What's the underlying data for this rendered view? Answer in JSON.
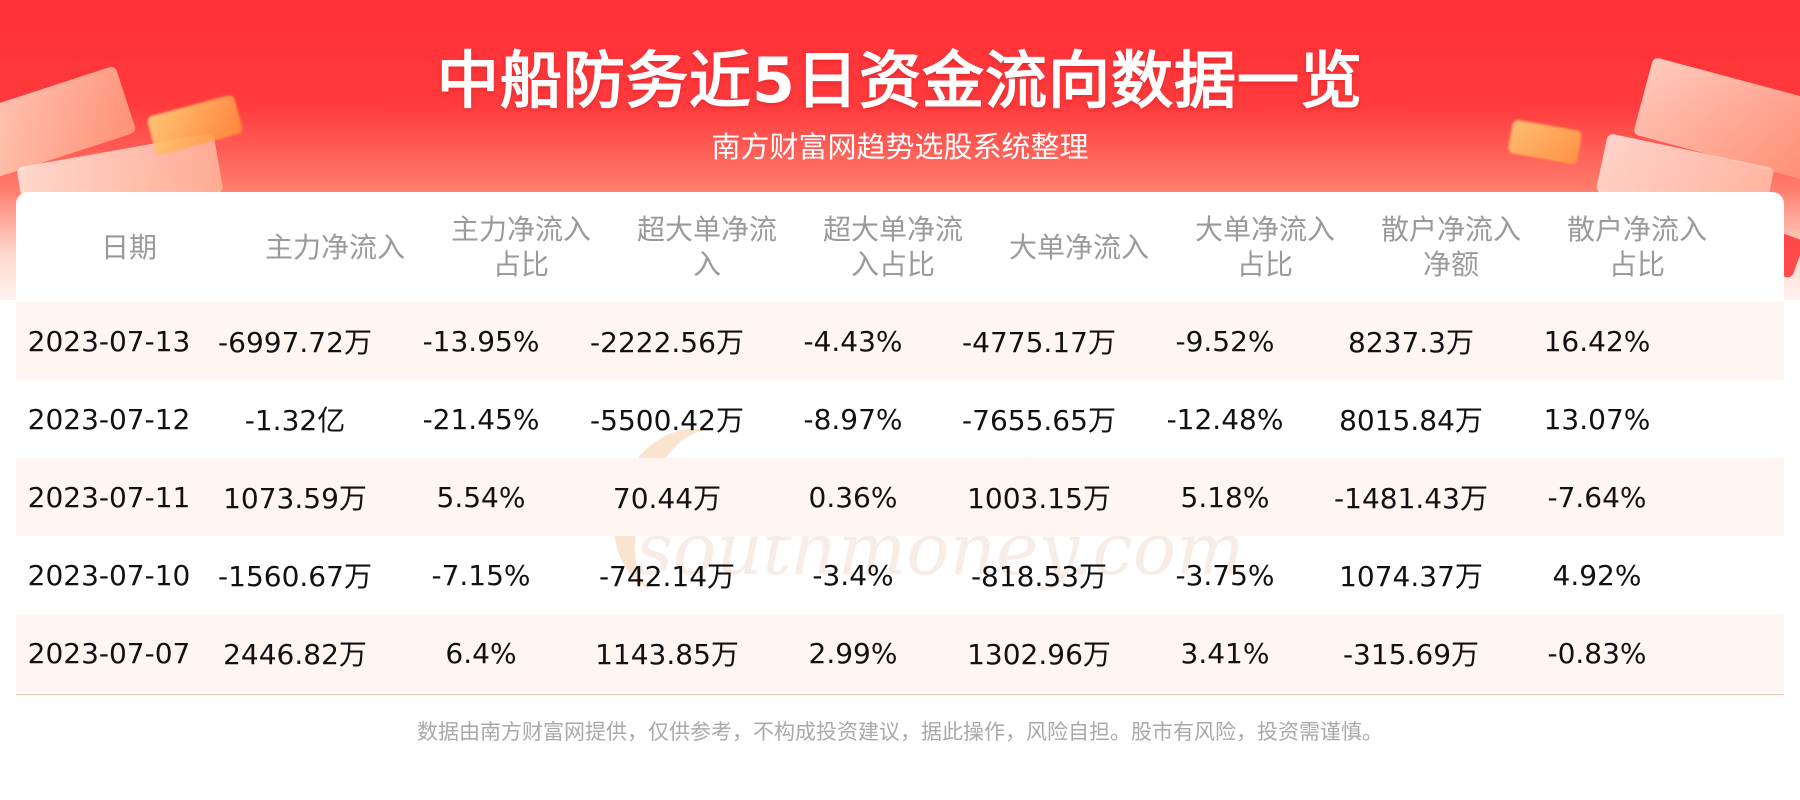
{
  "title": "中船防务近5日资金流向数据一览",
  "subtitle": "南方财富网趋势选股系统整理",
  "watermark": {
    "cn": "南方财富网",
    "en": "southmoney.com"
  },
  "table": {
    "headers": [
      [
        "日期"
      ],
      [
        "主力净流入"
      ],
      [
        "主力净流入",
        "占比"
      ],
      [
        "超大单净流",
        "入"
      ],
      [
        "超大单净流",
        "入占比"
      ],
      [
        "大单净流入"
      ],
      [
        "大单净流入",
        "占比"
      ],
      [
        "散户净流入",
        "净额"
      ],
      [
        "散户净流入",
        "占比"
      ]
    ],
    "rows": [
      [
        "2023-07-13",
        "-6997.72万",
        "-13.95%",
        "-2222.56万",
        "-4.43%",
        "-4775.17万",
        "-9.52%",
        "8237.3万",
        "16.42%"
      ],
      [
        "2023-07-12",
        "-1.32亿",
        "-21.45%",
        "-5500.42万",
        "-8.97%",
        "-7655.65万",
        "-12.48%",
        "8015.84万",
        "13.07%"
      ],
      [
        "2023-07-11",
        "1073.59万",
        "5.54%",
        "70.44万",
        "0.36%",
        "1003.15万",
        "5.18%",
        "-1481.43万",
        "-7.64%"
      ],
      [
        "2023-07-10",
        "-1560.67万",
        "-7.15%",
        "-742.14万",
        "-3.4%",
        "-818.53万",
        "-3.75%",
        "1074.37万",
        "4.92%"
      ],
      [
        "2023-07-07",
        "2446.82万",
        "6.4%",
        "1143.85万",
        "2.99%",
        "1302.96万",
        "3.41%",
        "-315.69万",
        "-0.83%"
      ]
    ]
  },
  "footer": "数据由南方财富网提供，仅供参考，不构成投资建议，据此操作，风险自担。股市有风险，投资需谨慎。",
  "colors": {
    "banner_red": "#ff2f36",
    "row_alt": "#fff6f1",
    "header_text": "#9a9a9a",
    "cell_text": "#111111",
    "footer_text": "#a9a9a9"
  }
}
